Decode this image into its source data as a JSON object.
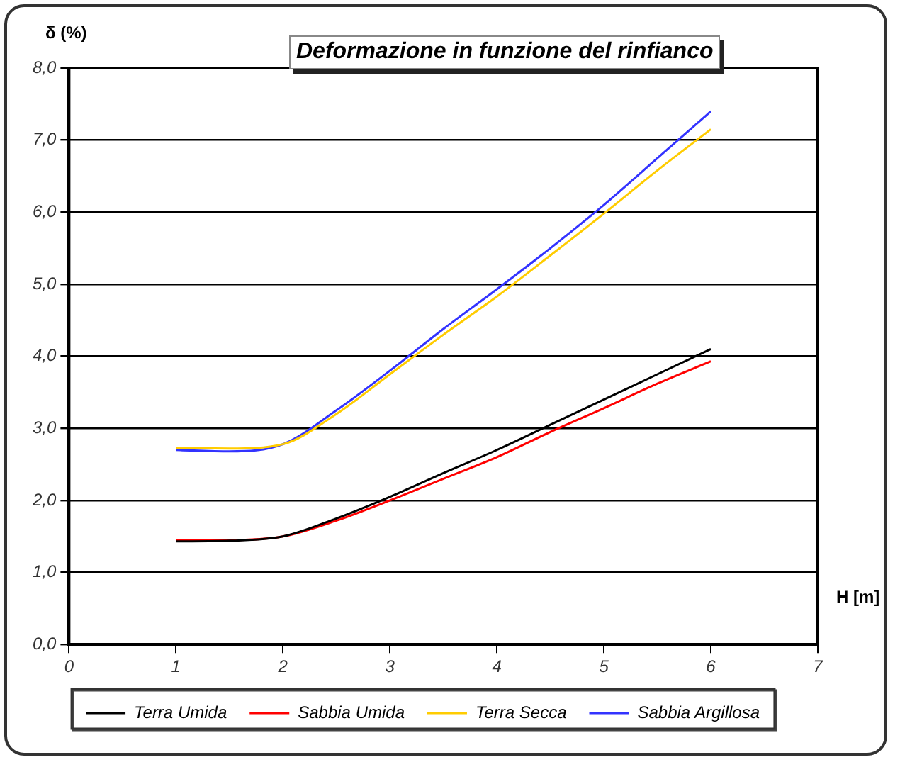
{
  "chart_data": {
    "type": "line",
    "title": "Deformazione in funzione del rinfianco",
    "xlabel": "H [m]",
    "ylabel": "δ (%)",
    "x": [
      1,
      1.5,
      2,
      2.5,
      3,
      3.5,
      4,
      4.5,
      5,
      5.5,
      6
    ],
    "series": [
      {
        "name": "Terra Umida",
        "color": "#000000",
        "values": [
          1.43,
          1.44,
          1.5,
          1.75,
          2.05,
          2.38,
          2.7,
          3.05,
          3.4,
          3.75,
          4.1
        ]
      },
      {
        "name": "Sabbia Umida",
        "color": "#ff0000",
        "values": [
          1.45,
          1.45,
          1.5,
          1.72,
          2.0,
          2.3,
          2.6,
          2.95,
          3.28,
          3.62,
          3.93
        ]
      },
      {
        "name": "Terra Secca",
        "color": "#ffcc00",
        "values": [
          2.73,
          2.72,
          2.78,
          3.2,
          3.75,
          4.3,
          4.83,
          5.4,
          5.98,
          6.58,
          7.15
        ]
      },
      {
        "name": "Sabbia Argillosa",
        "color": "#3333ff",
        "values": [
          2.7,
          2.68,
          2.78,
          3.25,
          3.8,
          4.38,
          4.93,
          5.5,
          6.1,
          6.75,
          7.4
        ]
      }
    ],
    "xlim": [
      0,
      7
    ],
    "xticks": [
      0,
      1,
      2,
      3,
      4,
      5,
      6,
      7
    ],
    "ylim": [
      0,
      8
    ],
    "yticks": [
      {
        "value": 0,
        "label": "0,0"
      },
      {
        "value": 1,
        "label": "1,0"
      },
      {
        "value": 2,
        "label": "2,0"
      },
      {
        "value": 3,
        "label": "3,0"
      },
      {
        "value": 4,
        "label": "4,0"
      },
      {
        "value": 5,
        "label": "5,0"
      },
      {
        "value": 6,
        "label": "6,0"
      },
      {
        "value": 7,
        "label": "7,0"
      },
      {
        "value": 8,
        "label": "8,0"
      }
    ],
    "grid": "y",
    "legend": "bottom",
    "marker": "none",
    "line_style": "solid"
  }
}
